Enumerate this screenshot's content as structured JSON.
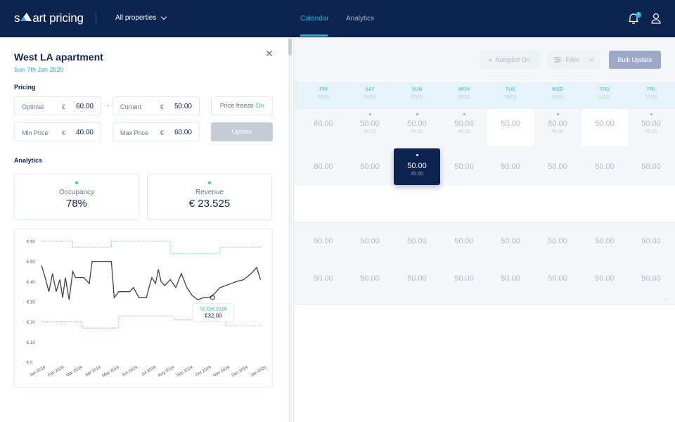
{
  "topbar": {
    "logo_left": "s",
    "logo_right": "art pricing",
    "properties_label": "All properties",
    "tabs": [
      {
        "label": "Calendar",
        "active": true
      },
      {
        "label": "Analytics",
        "active": false
      }
    ],
    "notification_count": "2"
  },
  "panel": {
    "title": "West LA apartment",
    "date": "Sun 7th Jan 2020",
    "pricing_heading": "Pricing",
    "optimal": {
      "label": "Optimal",
      "currency": "€",
      "value": "60.00"
    },
    "current": {
      "label": "Current",
      "currency": "€",
      "value": "50.00"
    },
    "min_price": {
      "label": "Min Price",
      "currency": "€",
      "value": "40.00"
    },
    "max_price": {
      "label": "Max Price",
      "currency": "€",
      "value": "60.00"
    },
    "price_freeze": {
      "label": "Price freeze",
      "state": "On"
    },
    "update_label": "Update",
    "analytics_heading": "Analytics",
    "occupancy": {
      "label": "Occupancy",
      "value": "78%"
    },
    "revenue": {
      "label": "Revenue",
      "value": "€ 23.525"
    },
    "tooltip": {
      "date": "02 Oct 2019",
      "value": "€32.00"
    }
  },
  "chart_data": {
    "type": "line",
    "y_ticks": [
      "€ 0",
      "€ 10",
      "€ 20",
      "€ 30",
      "€ 40",
      "€ 50",
      "€ 60"
    ],
    "ylim": [
      0,
      60
    ],
    "x_ticks": [
      "Jan 2019",
      "Feb 2019",
      "Mar 2019",
      "Apr 2019",
      "May 2019",
      "Jun 2019",
      "Jul 2019",
      "Aug 2019",
      "Sep 2019",
      "Oct 2019",
      "Nov 2019",
      "Dec 2019",
      "Jan 2020"
    ],
    "xlim": [
      0,
      12
    ],
    "series": [
      {
        "role": "price",
        "color": "#3a3f5c",
        "style": "solid",
        "x": [
          0,
          0.2,
          0.4,
          0.6,
          0.8,
          1.0,
          1.15,
          1.3,
          1.5,
          1.7,
          1.85,
          2.0,
          2.3,
          2.6,
          2.75,
          2.95,
          3.2,
          3.5,
          3.8,
          3.95,
          4.2,
          4.4,
          4.6,
          4.8,
          5.0,
          5.3,
          5.5,
          5.7,
          5.9,
          6.0,
          6.2,
          6.35,
          6.5,
          6.7,
          7.0,
          7.3,
          7.6,
          7.9,
          8.2,
          8.5,
          8.8,
          9.1,
          9.4,
          9.7,
          10.0,
          10.3,
          10.6,
          11.0,
          11.4,
          11.7,
          11.9
        ],
        "y": [
          48,
          42,
          35,
          44,
          35,
          41,
          32,
          42,
          31,
          45,
          42,
          42,
          42,
          39,
          50,
          50,
          50,
          50,
          50,
          32,
          35,
          35,
          35,
          35,
          37,
          32,
          32,
          32,
          39,
          42,
          39,
          46,
          40,
          38,
          41,
          37,
          44,
          37,
          33,
          31,
          32,
          32,
          34,
          37,
          38,
          39,
          40,
          41,
          44,
          47,
          41
        ]
      },
      {
        "role": "max",
        "color": "#5cd68a",
        "style": "dashed",
        "x": [
          0,
          1.7,
          1.7,
          3.8,
          3.8,
          7.0,
          7.0,
          9.7,
          9.7,
          12
        ],
        "y": [
          60,
          60,
          57,
          57,
          60,
          60,
          54,
          54,
          57,
          57
        ]
      },
      {
        "role": "min",
        "color": "#f08a8a",
        "style": "dashed",
        "x": [
          0,
          2.2,
          2.2,
          4.2,
          4.2,
          7.2,
          7.2,
          10.0,
          10.0,
          12
        ],
        "y": [
          20,
          20,
          17,
          17,
          23,
          23,
          21,
          21,
          18,
          18
        ]
      }
    ],
    "highlight": {
      "x": 9.3,
      "y": 32
    }
  },
  "toolbar": {
    "autopilot_label": "Autopilot",
    "autopilot_state": "On",
    "filter_label": "Filter",
    "bulk_update_label": "Bulk Update"
  },
  "calendar": {
    "days": [
      {
        "name": "FRI",
        "date": "05/01"
      },
      {
        "name": "SAT",
        "date": "06/01"
      },
      {
        "name": "SUN",
        "date": "07/01"
      },
      {
        "name": "MON",
        "date": "08/01"
      },
      {
        "name": "TUE",
        "date": "09/01"
      },
      {
        "name": "WED",
        "date": "10/01"
      },
      {
        "name": "THU",
        "date": "11/01"
      },
      {
        "name": "FRI",
        "date": "12/01"
      }
    ],
    "row1": [
      {
        "price": "60.00",
        "sub": ""
      },
      {
        "price": "50.00",
        "sub": "45.00"
      },
      {
        "price": "50.00",
        "sub": "45.00"
      },
      {
        "price": "50.00",
        "sub": "45.00"
      },
      {
        "price": "50.00",
        "sub": ""
      },
      {
        "price": "50.00",
        "sub": "45.00"
      },
      {
        "price": "50.00",
        "sub": ""
      },
      {
        "price": "50.00",
        "sub": "45.00"
      }
    ],
    "row2": [
      {
        "price": "60.00",
        "sub": ""
      },
      {
        "price": "50.00",
        "sub": ""
      },
      {
        "price": "50.00",
        "sub": "45.00"
      },
      {
        "price": "50.00",
        "sub": ""
      },
      {
        "price": "50.00",
        "sub": ""
      },
      {
        "price": "50.00",
        "sub": ""
      },
      {
        "price": "50.00",
        "sub": ""
      },
      {
        "price": "50.00",
        "sub": ""
      }
    ],
    "row3": [
      "50.00",
      "50.00",
      "50.00",
      "50.00",
      "50.00",
      "50.00",
      "50.00",
      "50.00"
    ],
    "row4": [
      "50.00",
      "50.00",
      "50.00",
      "50.00",
      "50.00",
      "50.00",
      "50.00",
      "50.00"
    ],
    "scroll_hint": "‹ ›"
  }
}
